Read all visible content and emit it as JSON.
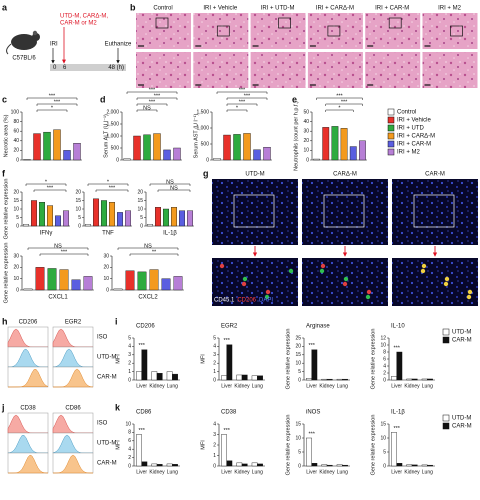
{
  "panel_labels": [
    "a",
    "b",
    "c",
    "d",
    "e",
    "f",
    "g",
    "h",
    "i",
    "j",
    "k"
  ],
  "a": {
    "strain": "C57BL/6",
    "injury": "IRI",
    "treatment": [
      "UTD-M, CARΔ-M,",
      "CAR-M or M2"
    ],
    "endpoint": "Euthanize",
    "timepoints": [
      "0",
      "6",
      "48 (h)"
    ]
  },
  "b": {
    "columns": [
      "Control",
      "IRI + Vehicle",
      "IRI + UTD-M",
      "IRI + CARΔ-M",
      "IRI + CAR-M",
      "IRI + M2"
    ]
  },
  "legend_groups": {
    "names": [
      "Control",
      "IRI + Vehicle",
      "IRI + UTD",
      "IRI + CARΔ-M",
      "IRI + CAR-M",
      "IRI + M2"
    ],
    "colors": [
      "#ffffff",
      "#e8312a",
      "#2eab3f",
      "#f39a1e",
      "#5a5ee0",
      "#b77fd6"
    ]
  },
  "g": {
    "columns": [
      "UTD-M",
      "CARΔ-M",
      "CAR-M"
    ],
    "stain": [
      "CD45.1",
      "CD206",
      "DAPI"
    ],
    "stain_colors": [
      "#ffffff",
      "#ff4040",
      "#5a7cff"
    ]
  },
  "h": {
    "markers": [
      "CD206",
      "EGR2"
    ],
    "rows": [
      "ISO",
      "UTD-M",
      "CAR-M"
    ]
  },
  "j": {
    "markers": [
      "CD38",
      "CD86"
    ],
    "rows": [
      "ISO",
      "UTD-M",
      "CAR-M"
    ]
  },
  "legend_i": {
    "names": [
      "UTD-M",
      "CAR-M"
    ],
    "colors": [
      "#ffffff",
      "#111111"
    ]
  },
  "legend_k": {
    "names": [
      "UTD-M",
      "CAR-M"
    ],
    "colors": [
      "#ffffff",
      "#111111"
    ]
  },
  "chart_data": [
    {
      "type": "bar",
      "ylabel": "Necrotic area (%)",
      "values": [
        1,
        55,
        58,
        63,
        20,
        35
      ],
      "ylim": [
        0,
        100
      ],
      "yticks": [
        0,
        20,
        40,
        60,
        80,
        100
      ],
      "annotations": [
        "***",
        "***",
        "*"
      ]
    },
    {
      "type": "bar",
      "ylabel": "Serum ALT (U l⁻¹)",
      "values": [
        50,
        1000,
        1050,
        1100,
        420,
        500
      ],
      "ylim": [
        0,
        2000
      ],
      "yticks": [
        0,
        500,
        {
          "value": 1000,
          "label": "1,000"
        },
        {
          "value": 1500,
          "label": "1,500"
        },
        {
          "value": 2000,
          "label": "2,000"
        }
      ],
      "annotations": [
        "***",
        "***",
        "***",
        "NS"
      ]
    },
    {
      "type": "bar",
      "ylabel": "Serum AST (U l⁻¹)",
      "values": [
        50,
        780,
        800,
        830,
        320,
        400
      ],
      "ylim": [
        0,
        1500
      ],
      "yticks": [
        0,
        500,
        {
          "value": 1000,
          "label": "1,000"
        },
        {
          "value": 1500,
          "label": "1,500"
        }
      ],
      "annotations": [
        "***",
        "***",
        "***",
        "*"
      ]
    },
    {
      "type": "bar",
      "ylabel": "Neutrophils (count per h.p.f.)",
      "values": [
        1,
        34,
        35,
        33,
        14,
        20
      ],
      "ylim": [
        0,
        50
      ],
      "yticks": [
        0,
        10,
        20,
        30,
        40,
        50
      ],
      "annotations": [
        "***",
        "***",
        "*"
      ]
    },
    {
      "type": "bar",
      "title": "IFNγ",
      "ylabel": "Gene relative expression",
      "values": [
        1,
        15,
        14,
        12,
        6,
        9
      ],
      "ylim": [
        0,
        20
      ],
      "yticks": [
        0,
        5,
        10,
        15,
        20
      ],
      "annotations": [
        "*",
        "***"
      ]
    },
    {
      "type": "bar",
      "title": "TNF",
      "values": [
        1,
        16,
        15,
        14,
        8,
        9
      ],
      "ylim": [
        0,
        20
      ],
      "yticks": [
        0,
        5,
        10,
        15,
        20
      ],
      "annotations": [
        "*",
        "***"
      ]
    },
    {
      "type": "bar",
      "title": "IL-1β",
      "values": [
        1,
        11,
        10,
        11,
        9,
        9
      ],
      "ylim": [
        0,
        20
      ],
      "yticks": [
        0,
        5,
        10,
        15,
        20
      ],
      "annotations": [
        "NS",
        "NS"
      ]
    },
    {
      "type": "bar",
      "title": "CXCL1",
      "ylabel": "Gene relative expression",
      "values": [
        1,
        20,
        19,
        18,
        9,
        12
      ],
      "ylim": [
        0,
        30
      ],
      "yticks": [
        0,
        10,
        20,
        30
      ],
      "annotations": [
        "NS",
        "***"
      ]
    },
    {
      "type": "bar",
      "title": "CXCL2",
      "values": [
        1,
        17,
        16,
        18,
        10,
        12
      ],
      "ylim": [
        0,
        30
      ],
      "yticks": [
        0,
        10,
        20,
        30
      ],
      "annotations": [
        "NS",
        "**"
      ]
    },
    {
      "type": "bar",
      "title": "CD206",
      "ylabel": "MFI",
      "categories": [
        "Liver",
        "Kidney",
        "Lung"
      ],
      "series": [
        {
          "values": [
            1,
            1,
            1
          ]
        },
        {
          "values": [
            3.6,
            0.8,
            0.7
          ]
        }
      ],
      "ylim": [
        0,
        5
      ],
      "yticks": [
        0,
        1,
        2,
        3,
        4,
        5
      ],
      "annotations": [
        "***"
      ]
    },
    {
      "type": "bar",
      "title": "EGR2",
      "ylabel": "MFI",
      "categories": [
        "Liver",
        "Kidney",
        "Lung"
      ],
      "series": [
        {
          "values": [
            0.5,
            0.6,
            0.5
          ]
        },
        {
          "values": [
            4.2,
            0.6,
            0.5
          ]
        }
      ],
      "ylim": [
        0,
        5
      ],
      "yticks": [
        0,
        1,
        2,
        3,
        4,
        5
      ],
      "annotations": [
        "***"
      ]
    },
    {
      "type": "bar",
      "title": "Arginase",
      "ylabel": "Gene relative expression",
      "categories": [
        "Liver",
        "Kidney",
        "Lung"
      ],
      "series": [
        {
          "values": [
            1,
            0.5,
            0.5
          ]
        },
        {
          "values": [
            18,
            0.5,
            0.5
          ]
        }
      ],
      "ylim": [
        0,
        25
      ],
      "yticks": [
        0,
        5,
        10,
        15,
        20,
        25
      ],
      "annotations": [
        "***"
      ]
    },
    {
      "type": "bar",
      "title": "IL-10",
      "ylabel": "Gene relative expression",
      "categories": [
        "Liver",
        "Kidney",
        "Lung"
      ],
      "series": [
        {
          "values": [
            1,
            0.3,
            0.3
          ]
        },
        {
          "values": [
            8,
            0.3,
            0.3
          ]
        }
      ],
      "ylim": [
        0,
        12
      ],
      "yticks": [
        0,
        2,
        4,
        6,
        8,
        10,
        12
      ],
      "annotations": [
        "***"
      ]
    },
    {
      "type": "bar",
      "title": "CD86",
      "ylabel": "MFI",
      "categories": [
        "Liver",
        "Kidney",
        "Lung"
      ],
      "series": [
        {
          "values": [
            7.5,
            0.5,
            0.5
          ]
        },
        {
          "values": [
            1,
            0.4,
            0.4
          ]
        }
      ],
      "ylim": [
        0,
        10
      ],
      "yticks": [
        0,
        2,
        4,
        6,
        8,
        10
      ],
      "annotations": [
        "***"
      ]
    },
    {
      "type": "bar",
      "title": "CD38",
      "ylabel": "MFI",
      "categories": [
        "Liver",
        "Kidney",
        "Lung"
      ],
      "series": [
        {
          "values": [
            3,
            0.3,
            0.3
          ]
        },
        {
          "values": [
            0.5,
            0.2,
            0.2
          ]
        }
      ],
      "ylim": [
        0,
        4
      ],
      "yticks": [
        0,
        1,
        2,
        3,
        4
      ],
      "annotations": [
        "***"
      ]
    },
    {
      "type": "bar",
      "title": "iNOS",
      "ylabel": "Gene relative expression",
      "categories": [
        "Liver",
        "Kidney",
        "Lung"
      ],
      "series": [
        {
          "values": [
            10,
            0.5,
            0.5
          ]
        },
        {
          "values": [
            1,
            0.3,
            0.3
          ]
        }
      ],
      "ylim": [
        0,
        15
      ],
      "yticks": [
        0,
        5,
        10,
        15
      ],
      "annotations": [
        "***"
      ]
    },
    {
      "type": "bar",
      "title": "IL-1β",
      "ylabel": "Gene relative expression",
      "categories": [
        "Liver",
        "Kidney",
        "Lung"
      ],
      "series": [
        {
          "values": [
            12,
            0.5,
            0.4
          ]
        },
        {
          "values": [
            1,
            0.4,
            0.3
          ]
        }
      ],
      "ylim": [
        0,
        15
      ],
      "yticks": [
        0,
        5,
        10,
        15
      ],
      "annotations": [
        "***"
      ]
    }
  ]
}
